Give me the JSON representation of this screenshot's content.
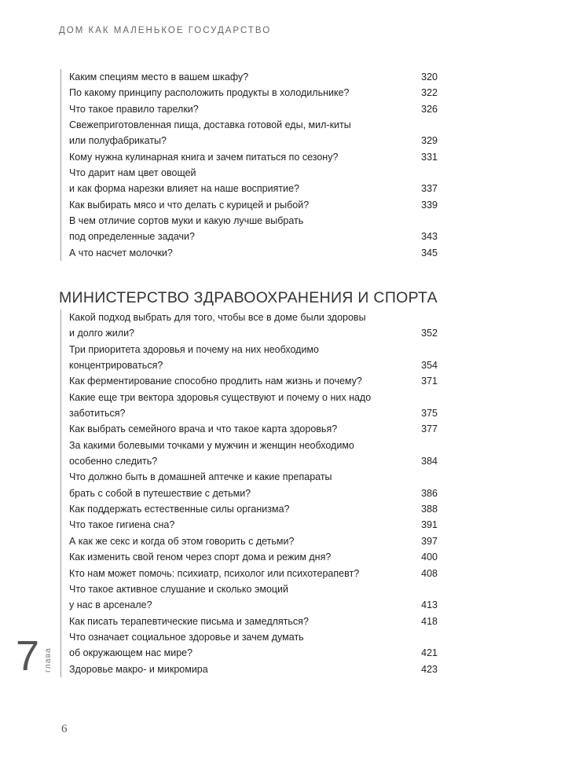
{
  "running_head": "ДОМ КАК МАЛЕНЬКОЕ ГОСУДАРСТВО",
  "toc_part1": [
    {
      "lines": [
        "Каким специям место в вашем шкафу?"
      ],
      "page": "320"
    },
    {
      "lines": [
        "По какому принципу расположить продукты в холодильнике?"
      ],
      "page": "322"
    },
    {
      "lines": [
        "Что такое правило тарелки?"
      ],
      "page": "326"
    },
    {
      "lines": [
        "Свежеприготовленная пища, доставка готовой еды, мил-киты",
        "или полуфабрикаты?"
      ],
      "page": "329"
    },
    {
      "lines": [
        "Кому нужна кулинарная книга и зачем питаться по сезону?"
      ],
      "page": "331"
    },
    {
      "lines": [
        "Что дарит нам цвет овощей",
        "и как форма нарезки влияет на наше восприятие?"
      ],
      "page": "337"
    },
    {
      "lines": [
        "Как выбирать мясо и что делать с курицей и рыбой?"
      ],
      "page": "339"
    },
    {
      "lines": [
        "В чем отличие сортов муки и какую лучше выбрать",
        "под определенные задачи?"
      ],
      "page": "343"
    },
    {
      "lines": [
        "А что насчет молочки?"
      ],
      "page": "345"
    }
  ],
  "section_title": "МИНИСТЕРСТВО ЗДРАВООХРАНЕНИЯ И СПОРТА",
  "toc_part2": [
    {
      "lines": [
        "Какой подход выбрать для того, чтобы все в доме были здоровы",
        "и долго жили?"
      ],
      "page": "352"
    },
    {
      "lines": [
        "Три приоритета здоровья и почему на них необходимо",
        "концентрироваться?"
      ],
      "page": "354"
    },
    {
      "lines": [
        "Как ферментирование способно продлить нам жизнь и почему?"
      ],
      "page": "371"
    },
    {
      "lines": [
        "Какие еще три вектора здоровья существуют и почему о них надо",
        "заботиться?"
      ],
      "page": "375"
    },
    {
      "lines": [
        "Как выбрать семейного врача и что такое карта здоровья?"
      ],
      "page": "377"
    },
    {
      "lines": [
        "За какими болевыми точками у мужчин и женщин необходимо",
        "особенно следить?"
      ],
      "page": "384"
    },
    {
      "lines": [
        "Что должно быть в домашней аптечке и какие препараты",
        "брать с собой в путешествие с детьми?"
      ],
      "page": "386"
    },
    {
      "lines": [
        "Как поддержать естественные силы организма?"
      ],
      "page": "388"
    },
    {
      "lines": [
        "Что такое гигиена сна?"
      ],
      "page": "391"
    },
    {
      "lines": [
        "А как же секс и когда об этом говорить с детьми?"
      ],
      "page": "397"
    },
    {
      "lines": [
        "Как изменить свой геном через спорт дома и режим дня?"
      ],
      "page": "400"
    },
    {
      "lines": [
        "Кто нам может помочь: психиатр, психолог или психотерапевт?"
      ],
      "page": "408"
    },
    {
      "lines": [
        "Что такое активное слушание и сколько эмоций",
        "у нас в арсенале?"
      ],
      "page": "413"
    },
    {
      "lines": [
        "Как писать терапевтические письма и замедляться?"
      ],
      "page": "418"
    },
    {
      "lines": [
        "Что означает социальное здоровье и зачем думать",
        "об окружающем нас мире?"
      ],
      "page": "421"
    },
    {
      "lines": [
        "Здоровье макро- и микромира"
      ],
      "page": "423"
    }
  ],
  "chapter": {
    "number": "7",
    "word": "глава"
  },
  "page_number": "6"
}
